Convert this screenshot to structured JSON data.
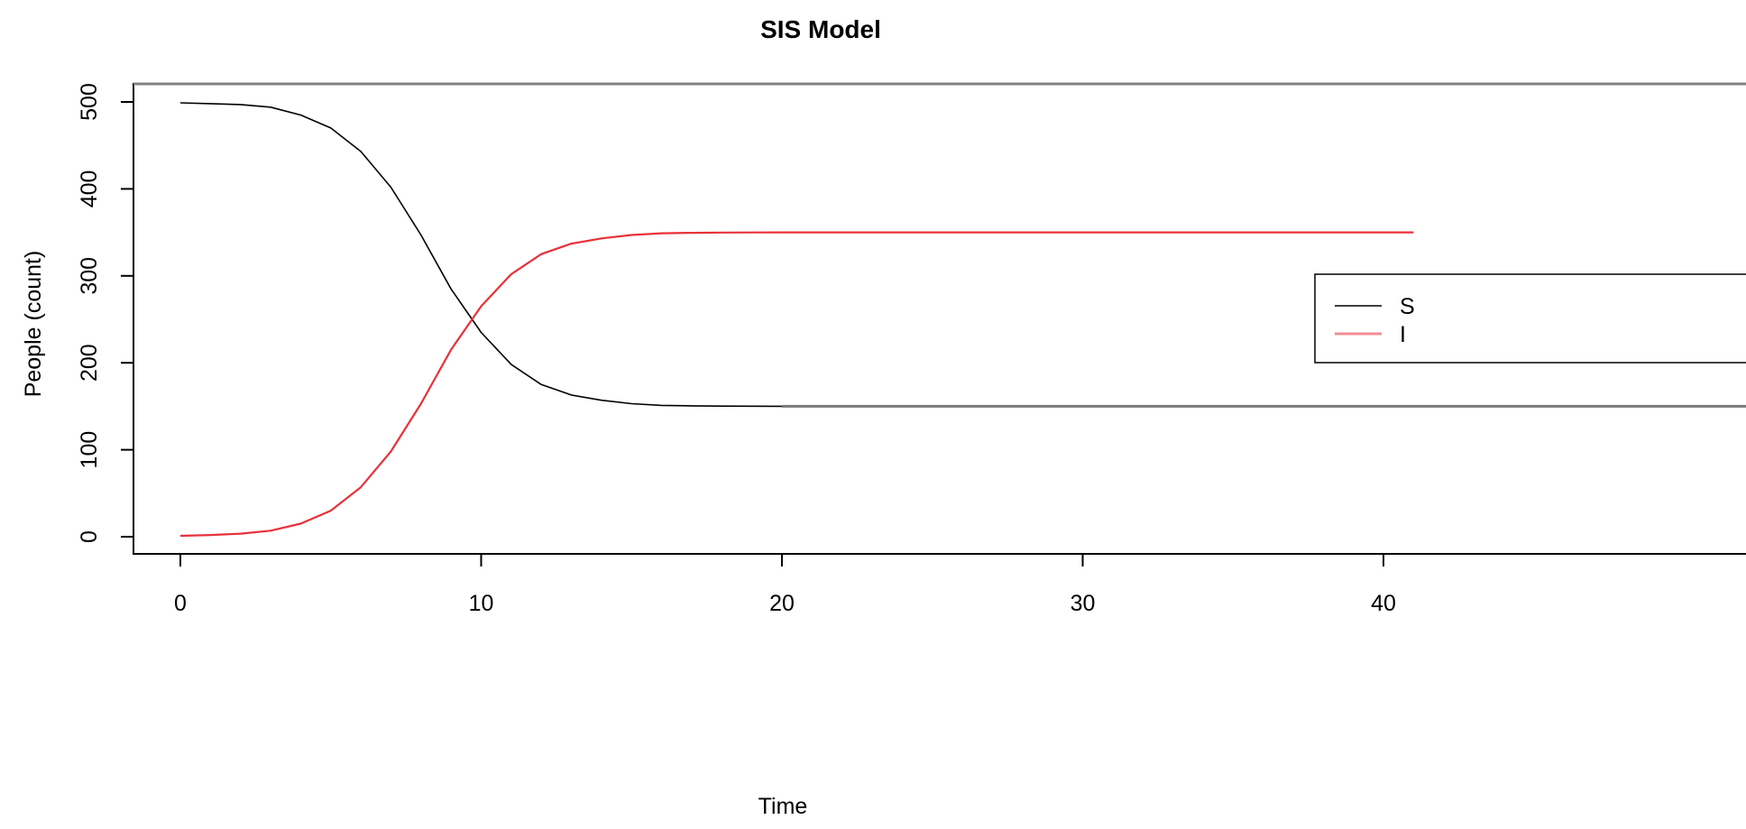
{
  "chart_data": {
    "type": "line",
    "title": "SIS Model",
    "xlabel": "Time",
    "ylabel": "People (count)",
    "xlim": [
      0,
      40
    ],
    "ylim": [
      0,
      500
    ],
    "xticks": [
      "0",
      "10",
      "20",
      "30",
      "40"
    ],
    "yticks": [
      "0",
      "100",
      "200",
      "300",
      "400",
      "500"
    ],
    "grid": false,
    "legend_position": "right",
    "x": [
      0,
      1,
      2,
      3,
      4,
      5,
      6,
      7,
      8,
      9,
      10,
      11,
      12,
      13,
      14,
      15,
      16,
      17,
      18,
      19,
      20,
      22,
      24,
      26,
      28,
      30,
      32,
      34,
      36,
      38,
      40,
      41
    ],
    "series": [
      {
        "name": "S",
        "color": "#000000",
        "values": [
          499,
          498,
          497,
          494,
          485,
          470,
          443,
          402,
          347,
          285,
          235,
          198,
          175,
          163,
          157,
          153,
          151,
          150.5,
          150.2,
          150.1,
          150,
          150,
          150,
          150,
          150,
          150,
          150,
          150,
          150,
          150,
          150,
          150
        ]
      },
      {
        "name": "I",
        "color": "#e8313a",
        "values": [
          1,
          2,
          3.5,
          7,
          15,
          30,
          57,
          98,
          153,
          215,
          265,
          302,
          325,
          337,
          343,
          347,
          349,
          349.5,
          349.8,
          349.9,
          350,
          350,
          350,
          350,
          350,
          350,
          350,
          350,
          350,
          350,
          350,
          350
        ]
      }
    ]
  }
}
